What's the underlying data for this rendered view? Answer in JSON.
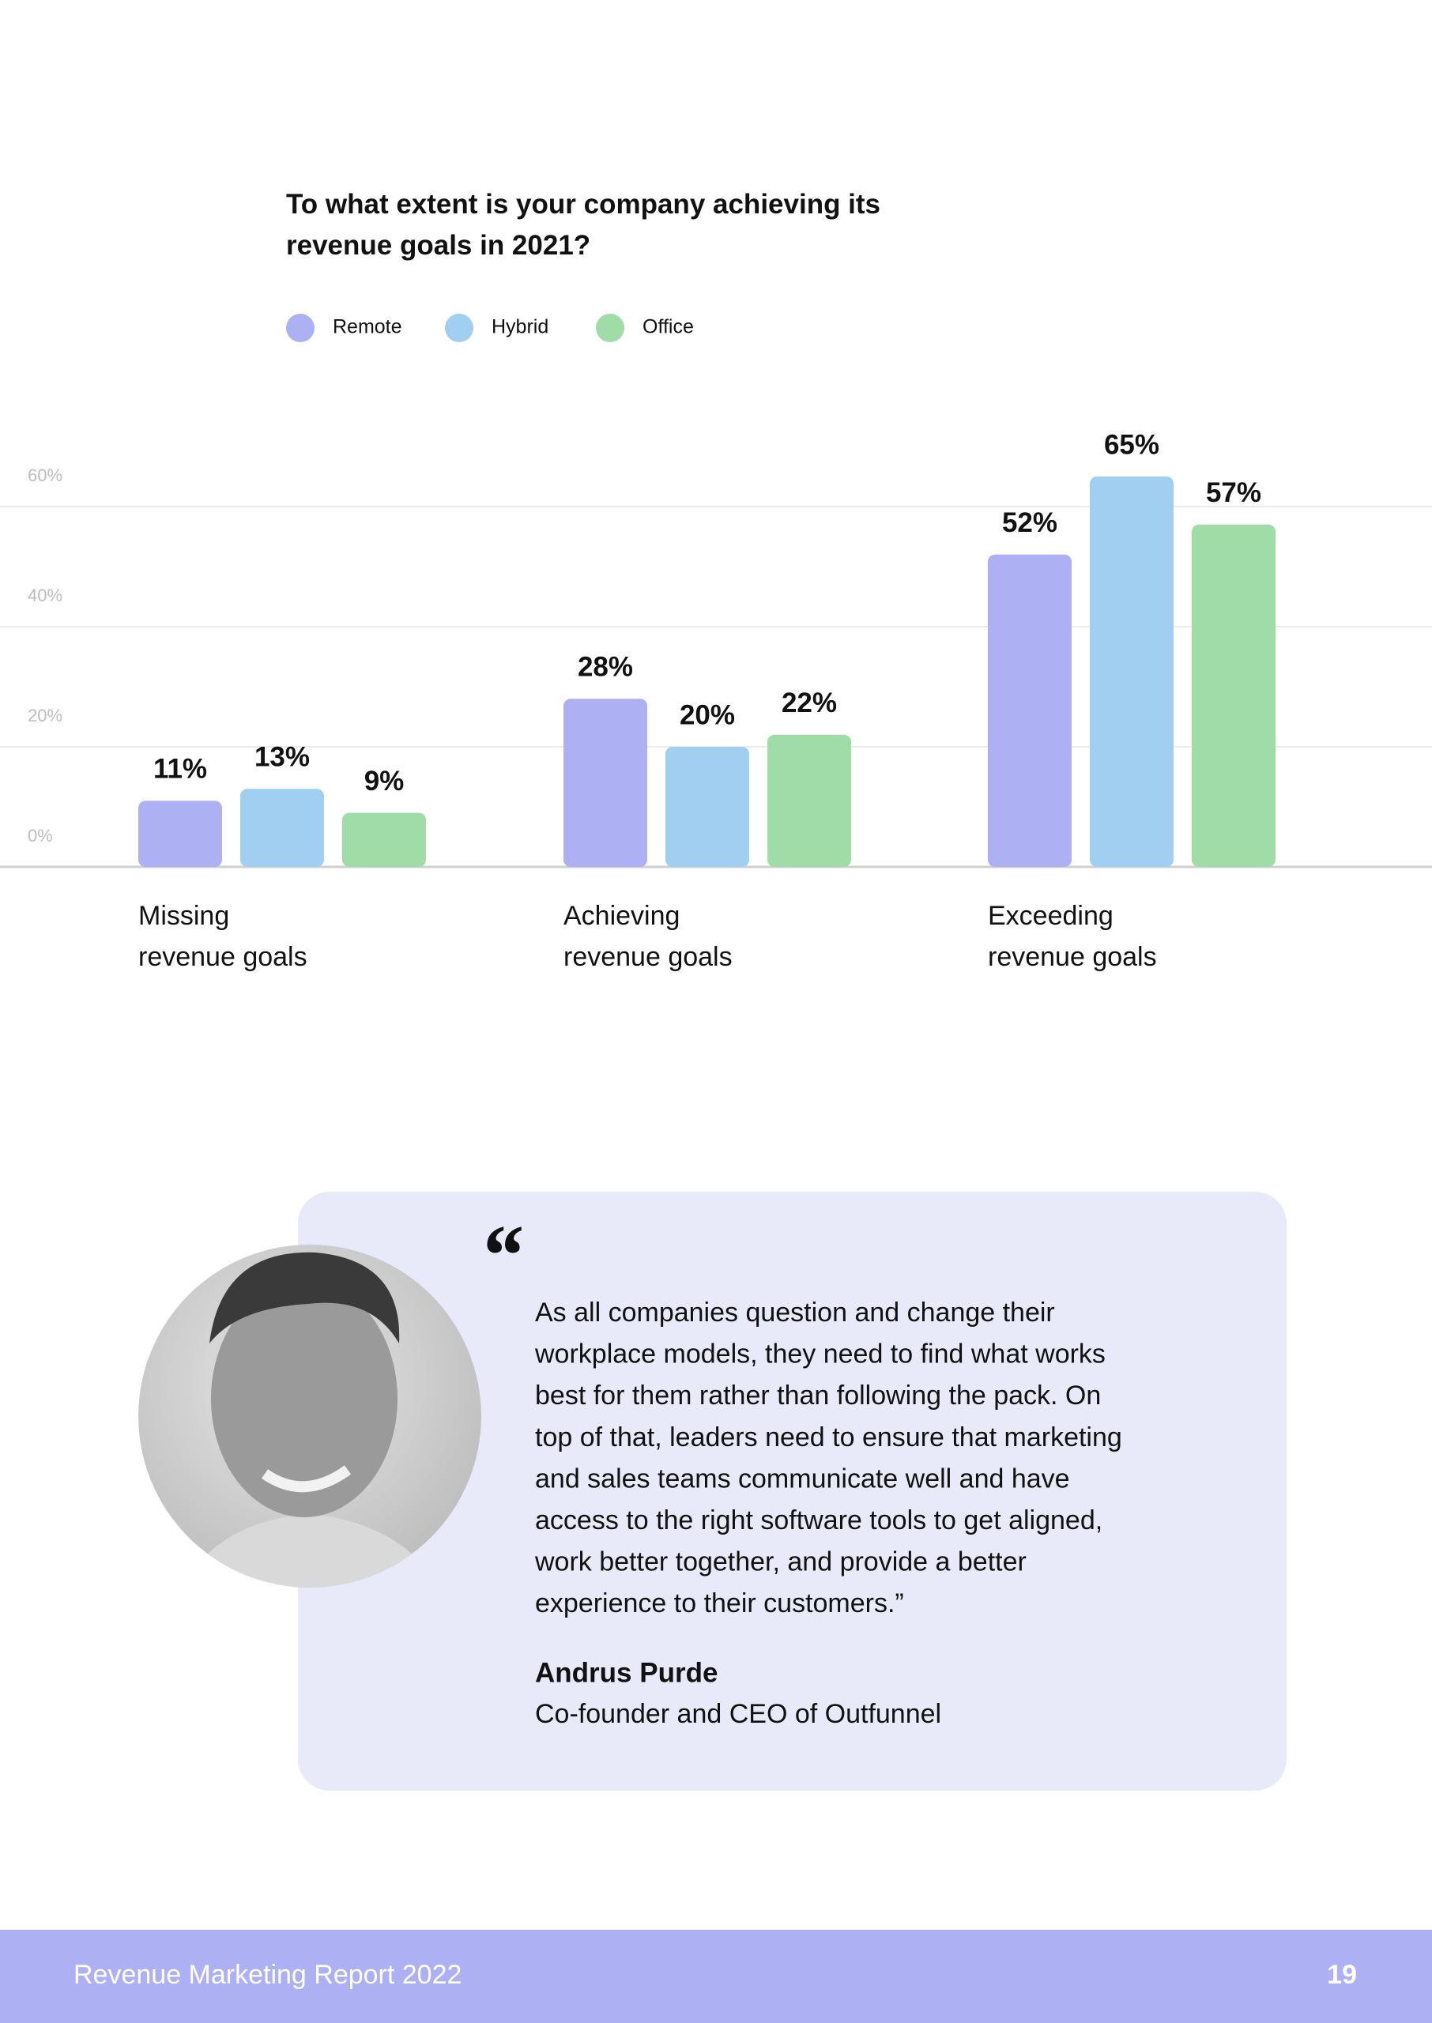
{
  "chart_data": {
    "type": "bar",
    "title": "To what extent is your company achieving its\nrevenue goals in 2021?",
    "categories": [
      "Missing\nrevenue goals",
      "Achieving\nrevenue goals",
      "Exceeding\nrevenue goals"
    ],
    "series": [
      {
        "name": "Remote",
        "color": "#adb0f2",
        "values": [
          11,
          28,
          52
        ],
        "value_labels": [
          "11%",
          "28%",
          "52%"
        ]
      },
      {
        "name": "Hybrid",
        "color": "#a0cff2",
        "values": [
          13,
          20,
          65
        ],
        "value_labels": [
          "13%",
          "20%",
          "65%"
        ]
      },
      {
        "name": "Office",
        "color": "#9fdca8",
        "values": [
          9,
          22,
          57
        ],
        "value_labels": [
          "9%",
          "22%",
          "57%"
        ]
      }
    ],
    "ylim": [
      0,
      65
    ],
    "yticks": [
      {
        "value": 0,
        "label": "0%"
      },
      {
        "value": 20,
        "label": "20%"
      },
      {
        "value": 40,
        "label": "40%"
      },
      {
        "value": 60,
        "label": "60%"
      }
    ],
    "grid": true
  },
  "quote": {
    "lines": [
      "As all companies question and change their",
      "workplace models, they need to find what works",
      "best for them rather than following the pack. On",
      "top of that, leaders need to ensure that marketing",
      "and sales teams communicate well and have",
      "access to the right software tools to get aligned,",
      "work better together, and provide a better",
      "experience to their customers.”"
    ],
    "author": "Andrus Purde",
    "role": "Co-founder and CEO of Outfunnel"
  },
  "footer": {
    "title": "Revenue Marketing Report 2022",
    "page": "19"
  }
}
